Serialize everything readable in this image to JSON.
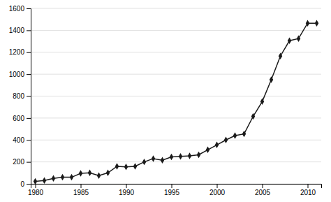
{
  "chart_data": {
    "type": "line",
    "x": [
      1980,
      1981,
      1982,
      1983,
      1984,
      1985,
      1986,
      1987,
      1988,
      1989,
      1990,
      1991,
      1992,
      1993,
      1994,
      1995,
      1996,
      1997,
      1998,
      1999,
      2000,
      2001,
      2002,
      2003,
      2004,
      2005,
      2006,
      2007,
      2008,
      2009,
      2010,
      2011
    ],
    "values": [
      22,
      30,
      50,
      60,
      60,
      95,
      100,
      75,
      100,
      160,
      155,
      160,
      200,
      230,
      215,
      245,
      250,
      255,
      265,
      310,
      355,
      400,
      440,
      455,
      615,
      750,
      950,
      1165,
      1305,
      1325,
      1465,
      1465
    ],
    "color": "#1a1a1a",
    "marker": "diamond",
    "xlim": [
      1979.5,
      2011.5
    ],
    "ylim": [
      0,
      1600
    ],
    "xticks": [
      1980,
      1985,
      1990,
      1995,
      2000,
      2005,
      2010
    ],
    "yticks": [
      0,
      200,
      400,
      600,
      800,
      1000,
      1200,
      1400,
      1600
    ],
    "grid": true
  }
}
